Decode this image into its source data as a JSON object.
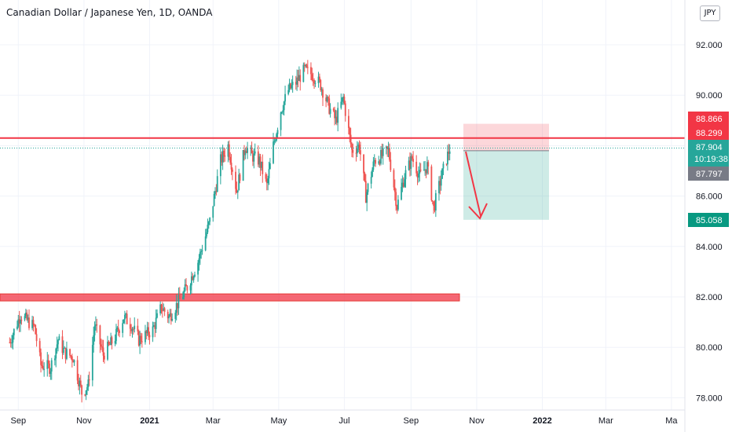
{
  "header": {
    "title": "Canadian Dollar / Japanese Yen, 1D, OANDA",
    "currency": "JPY"
  },
  "chart_data": {
    "type": "candlestick",
    "title": "Canadian Dollar / Japanese Yen, 1D, OANDA",
    "y_ticks": [
      "92.000",
      "90.000",
      "88.000",
      "86.000",
      "84.000",
      "82.000",
      "80.000",
      "78.000"
    ],
    "y_tick_values": [
      92,
      90,
      88,
      86,
      84,
      82,
      80,
      78
    ],
    "x_ticks": [
      "Sep",
      "Nov",
      "2021",
      "Mar",
      "May",
      "Jul",
      "Sep",
      "Nov",
      "2022",
      "Mar",
      "Ma"
    ],
    "ylim": [
      77.6,
      93.7
    ],
    "price_labels": [
      {
        "text": "88.866",
        "value": 88.866,
        "color": "#f23645"
      },
      {
        "text": "88.299",
        "value": 88.299,
        "color": "#f23645"
      },
      {
        "text": "87.904",
        "value": 87.904,
        "color": "#26a69a"
      },
      {
        "text": "10:19:38",
        "value": 87.904,
        "color": "#26a69a"
      },
      {
        "text": "87.797",
        "value": 87.797,
        "color": "#787b86"
      },
      {
        "text": "85.058",
        "value": 85.058,
        "color": "#089981"
      }
    ],
    "levels": [
      {
        "name": "resistance",
        "value": 88.3,
        "color": "#f23645"
      },
      {
        "name": "support-zone",
        "low": 81.84,
        "high": 82.12,
        "color": "#f23645"
      }
    ],
    "position": {
      "type": "short",
      "entry": 87.797,
      "stop": 88.866,
      "target": 85.058
    },
    "colors": {
      "up": "#26a69a",
      "down": "#ef5350"
    },
    "anchors": [
      [
        "2020-08-24",
        80.2
      ],
      [
        "2020-09-03",
        81.3
      ],
      [
        "2020-09-16",
        80.8
      ],
      [
        "2020-09-22",
        79.3
      ],
      [
        "2020-10-01",
        79.2
      ],
      [
        "2020-10-08",
        80.3
      ],
      [
        "2020-10-14",
        79.8
      ],
      [
        "2020-10-22",
        79.6
      ],
      [
        "2020-10-30",
        78.2
      ],
      [
        "2020-11-05",
        78.5
      ],
      [
        "2020-11-11",
        80.9
      ],
      [
        "2020-11-19",
        79.7
      ],
      [
        "2020-11-30",
        80.4
      ],
      [
        "2020-12-08",
        81.2
      ],
      [
        "2020-12-15",
        80.9
      ],
      [
        "2020-12-22",
        80.3
      ],
      [
        "2021-01-04",
        80.7
      ],
      [
        "2021-01-12",
        81.6
      ],
      [
        "2021-01-19",
        81.2
      ],
      [
        "2021-01-28",
        81.8
      ],
      [
        "2021-02-05",
        82.4
      ],
      [
        "2021-02-15",
        83.4
      ],
      [
        "2021-02-26",
        85.0
      ],
      [
        "2021-03-08",
        87.4
      ],
      [
        "2021-03-15",
        88.0
      ],
      [
        "2021-03-23",
        86.2
      ],
      [
        "2021-03-31",
        88.0
      ],
      [
        "2021-04-06",
        87.6
      ],
      [
        "2021-04-13",
        87.4
      ],
      [
        "2021-04-20",
        86.4
      ],
      [
        "2021-04-26",
        88.0
      ],
      [
        "2021-05-03",
        89.4
      ],
      [
        "2021-05-10",
        90.2
      ],
      [
        "2021-05-17",
        90.5
      ],
      [
        "2021-05-25",
        91.0
      ],
      [
        "2021-06-02",
        90.8
      ],
      [
        "2021-06-09",
        90.4
      ],
      [
        "2021-06-17",
        89.5
      ],
      [
        "2021-06-23",
        89.0
      ],
      [
        "2021-06-30",
        89.9
      ],
      [
        "2021-07-08",
        87.8
      ],
      [
        "2021-07-15",
        88.0
      ],
      [
        "2021-07-21",
        86.0
      ],
      [
        "2021-07-29",
        87.4
      ],
      [
        "2021-08-05",
        87.6
      ],
      [
        "2021-08-11",
        87.8
      ],
      [
        "2021-08-19",
        85.6
      ],
      [
        "2021-08-26",
        86.8
      ],
      [
        "2021-09-02",
        87.5
      ],
      [
        "2021-09-09",
        86.8
      ],
      [
        "2021-09-16",
        87.2
      ],
      [
        "2021-09-22",
        85.5
      ],
      [
        "2021-09-30",
        86.9
      ],
      [
        "2021-10-07",
        87.9
      ]
    ]
  }
}
